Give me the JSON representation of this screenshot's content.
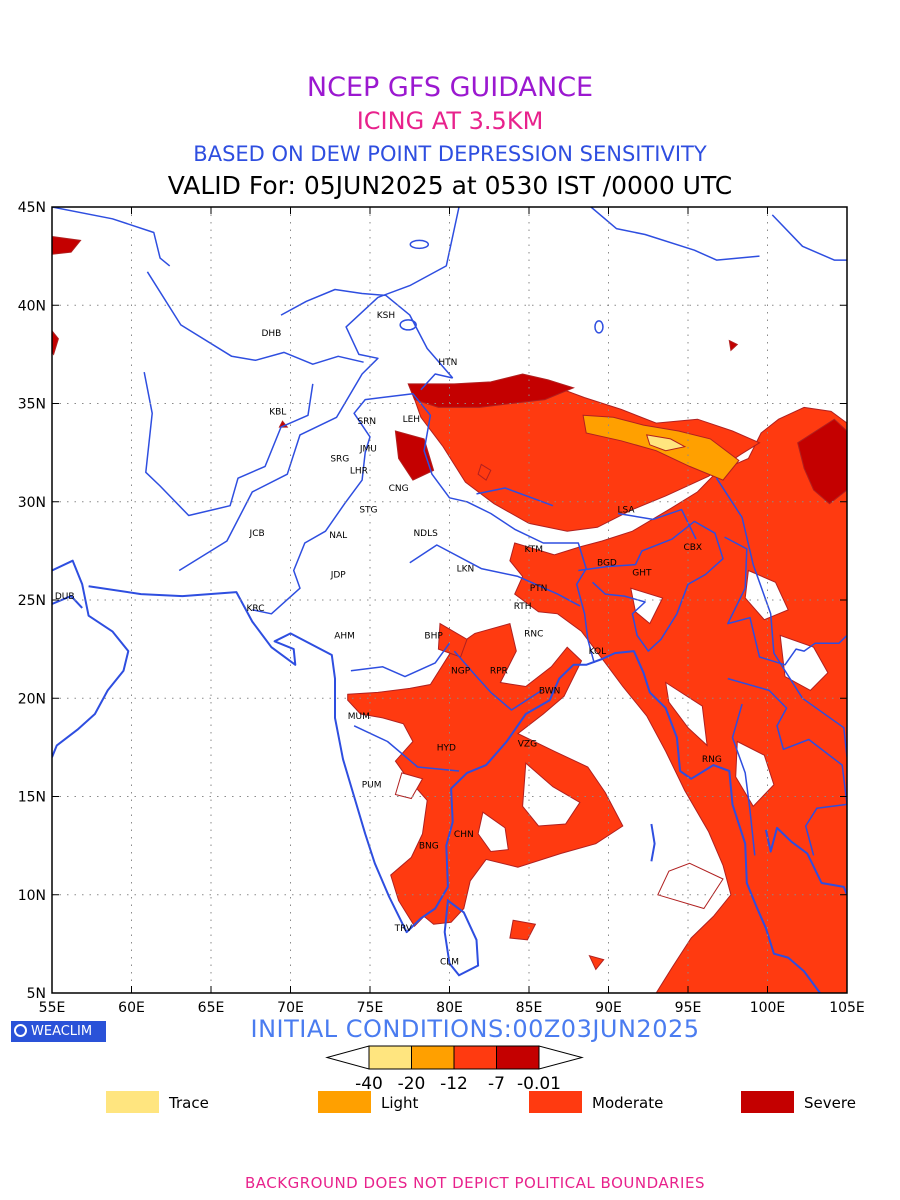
{
  "header": {
    "line1": "NCEP GFS GUIDANCE",
    "line2": "ICING AT 3.5KM",
    "line3": "BASED ON DEW POINT DEPRESSION SENSITIVITY",
    "line4": "VALID For: 05JUN2025 at 0530 IST /0000 UTC"
  },
  "colors": {
    "line1": "#9b18d0",
    "line2": "#e8228c",
    "line3": "#2e4ee0",
    "coast": "#2e4ee0",
    "trace": "#ffe57f",
    "light": "#ffa000",
    "moderate": "#ff3a10",
    "severe": "#c40000",
    "edge": "#b02020"
  },
  "axes": {
    "x_ticks": [
      "55E",
      "60E",
      "65E",
      "70E",
      "75E",
      "80E",
      "85E",
      "90E",
      "95E",
      "100E",
      "105E"
    ],
    "y_ticks": [
      "45N",
      "40N",
      "35N",
      "30N",
      "25N",
      "20N",
      "15N",
      "10N",
      "5N"
    ],
    "lon_range": [
      55,
      105
    ],
    "lat_range": [
      5,
      45
    ],
    "grid": "dotted"
  },
  "cities": [
    {
      "label": "KSH",
      "lon": 76.0,
      "lat": 39.5
    },
    {
      "label": "DHB",
      "lon": 68.8,
      "lat": 38.6
    },
    {
      "label": "HTN",
      "lon": 79.9,
      "lat": 37.1
    },
    {
      "label": "KBL",
      "lon": 69.2,
      "lat": 34.6
    },
    {
      "label": "SRN",
      "lon": 74.8,
      "lat": 34.1
    },
    {
      "label": "LEH",
      "lon": 77.6,
      "lat": 34.2
    },
    {
      "label": "JMU",
      "lon": 74.9,
      "lat": 32.7
    },
    {
      "label": "SRG",
      "lon": 73.1,
      "lat": 32.2
    },
    {
      "label": "LHR",
      "lon": 74.3,
      "lat": 31.6
    },
    {
      "label": "CNG",
      "lon": 76.8,
      "lat": 30.7
    },
    {
      "label": "LSA",
      "lon": 91.1,
      "lat": 29.6
    },
    {
      "label": "STG",
      "lon": 74.9,
      "lat": 29.6
    },
    {
      "label": "JCB",
      "lon": 67.9,
      "lat": 28.4
    },
    {
      "label": "NAL",
      "lon": 73.0,
      "lat": 28.3
    },
    {
      "label": "NDLS",
      "lon": 78.5,
      "lat": 28.4
    },
    {
      "label": "KTM",
      "lon": 85.3,
      "lat": 27.6
    },
    {
      "label": "CBX",
      "lon": 95.3,
      "lat": 27.7
    },
    {
      "label": "BGD",
      "lon": 89.9,
      "lat": 26.9
    },
    {
      "label": "GHT",
      "lon": 92.1,
      "lat": 26.4
    },
    {
      "label": "JDP",
      "lon": 73.0,
      "lat": 26.3
    },
    {
      "label": "LKN",
      "lon": 81.0,
      "lat": 26.6
    },
    {
      "label": "PTN",
      "lon": 85.6,
      "lat": 25.6
    },
    {
      "label": "DUB",
      "lon": 55.8,
      "lat": 25.2
    },
    {
      "label": "RTH",
      "lon": 84.6,
      "lat": 24.7
    },
    {
      "label": "KRC",
      "lon": 67.8,
      "lat": 24.6
    },
    {
      "label": "BHP",
      "lon": 79.0,
      "lat": 23.2
    },
    {
      "label": "AHM",
      "lon": 73.4,
      "lat": 23.2
    },
    {
      "label": "RNC",
      "lon": 85.3,
      "lat": 23.3
    },
    {
      "label": "KOL",
      "lon": 89.3,
      "lat": 22.4
    },
    {
      "label": "NGP",
      "lon": 80.7,
      "lat": 21.4
    },
    {
      "label": "RPR",
      "lon": 83.1,
      "lat": 21.4
    },
    {
      "label": "BWN",
      "lon": 86.3,
      "lat": 20.4
    },
    {
      "label": "MUM",
      "lon": 74.3,
      "lat": 19.1
    },
    {
      "label": "HYD",
      "lon": 79.8,
      "lat": 17.5
    },
    {
      "label": "VZG",
      "lon": 84.9,
      "lat": 17.7
    },
    {
      "label": "RNG",
      "lon": 96.5,
      "lat": 16.9
    },
    {
      "label": "PUM",
      "lon": 75.1,
      "lat": 15.6
    },
    {
      "label": "CHN",
      "lon": 80.9,
      "lat": 13.1
    },
    {
      "label": "BNG",
      "lon": 78.7,
      "lat": 12.5
    },
    {
      "label": "TRV",
      "lon": 77.1,
      "lat": 8.3
    },
    {
      "label": "CLM",
      "lon": 80.0,
      "lat": 6.6
    }
  ],
  "colorbar": {
    "labels": [
      "-40",
      "-20",
      "-12",
      "-7",
      "-0.01"
    ]
  },
  "legend": [
    {
      "label": "Trace",
      "key": "trace"
    },
    {
      "label": "Light",
      "key": "light"
    },
    {
      "label": "Moderate",
      "key": "moderate"
    },
    {
      "label": "Severe",
      "key": "severe"
    }
  ],
  "badge": "WEACLIM",
  "initial_conditions": "INITIAL CONDITIONS:00Z03JUN2025",
  "footer": "BACKGROUND DOES NOT DEPICT POLITICAL BOUNDARIES"
}
